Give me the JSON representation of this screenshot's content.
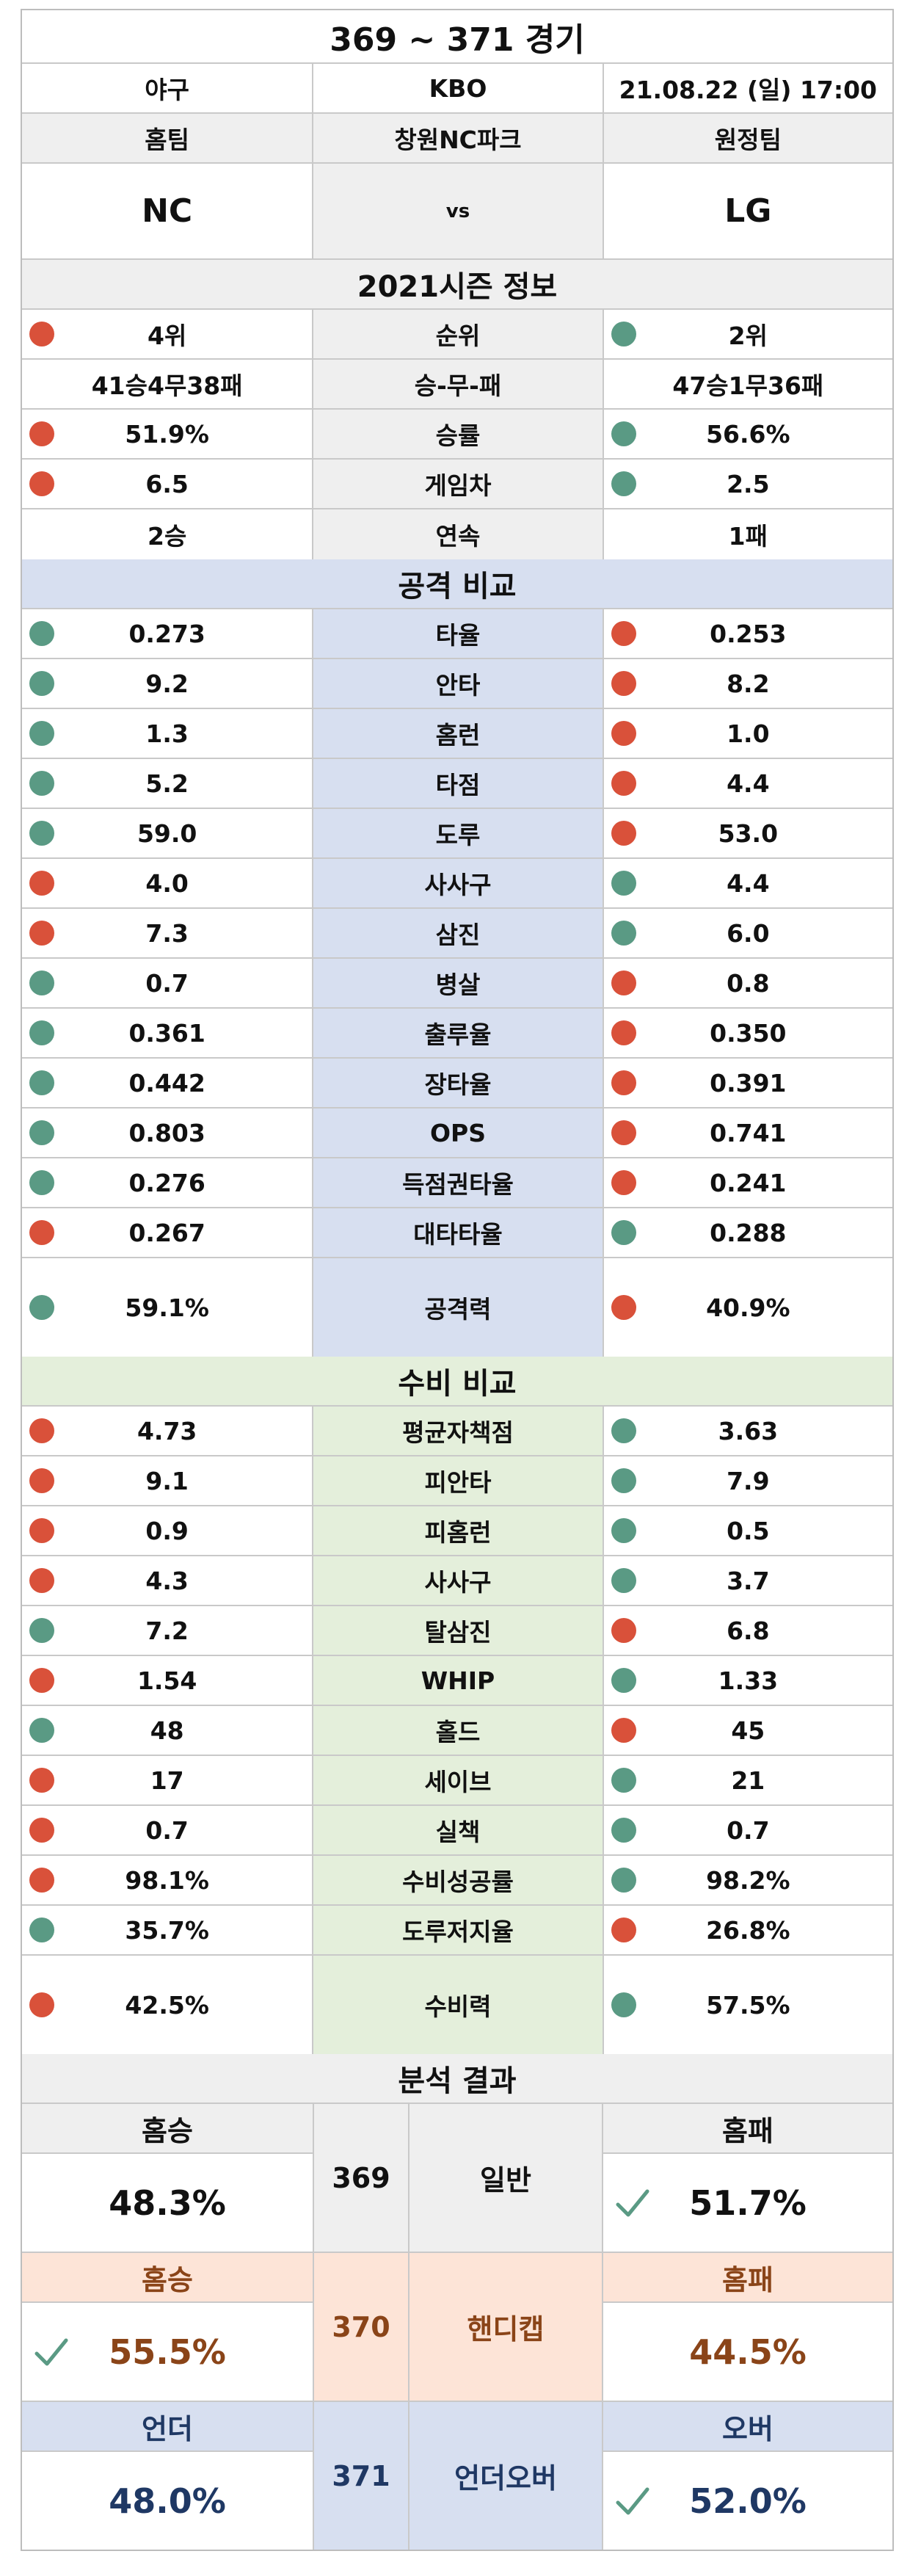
{
  "title": "369 ~ 371 경기",
  "info": {
    "sport": "야구",
    "league": "KBO",
    "datetime": "21.08.22 (일) 17:00"
  },
  "teams_header": {
    "home_label": "홈팀",
    "venue": "창원NC파크",
    "away_label": "원정팀"
  },
  "teams": {
    "home": "NC",
    "vs": "vs",
    "away": "LG"
  },
  "sections": {
    "season": "2021시즌 정보",
    "attack": "공격 비교",
    "defense": "수비 비교",
    "result": "분석 결과"
  },
  "colors": {
    "red_dot": "#d9513a",
    "green_dot": "#5a9a84",
    "check": "#5a9a84"
  },
  "season_rows": [
    {
      "label": "순위",
      "home": "4위",
      "away": "2위",
      "home_dot": "red",
      "away_dot": "green"
    },
    {
      "label": "승-무-패",
      "home": "41승4무38패",
      "away": "47승1무36패",
      "home_dot": "",
      "away_dot": ""
    },
    {
      "label": "승률",
      "home": "51.9%",
      "away": "56.6%",
      "home_dot": "red",
      "away_dot": "green"
    },
    {
      "label": "게임차",
      "home": "6.5",
      "away": "2.5",
      "home_dot": "red",
      "away_dot": "green"
    },
    {
      "label": "연속",
      "home": "2승",
      "away": "1패",
      "home_dot": "",
      "away_dot": ""
    }
  ],
  "attack_rows": [
    {
      "label": "타율",
      "home": "0.273",
      "away": "0.253",
      "home_dot": "green",
      "away_dot": "red"
    },
    {
      "label": "안타",
      "home": "9.2",
      "away": "8.2",
      "home_dot": "green",
      "away_dot": "red"
    },
    {
      "label": "홈런",
      "home": "1.3",
      "away": "1.0",
      "home_dot": "green",
      "away_dot": "red"
    },
    {
      "label": "타점",
      "home": "5.2",
      "away": "4.4",
      "home_dot": "green",
      "away_dot": "red"
    },
    {
      "label": "도루",
      "home": "59.0",
      "away": "53.0",
      "home_dot": "green",
      "away_dot": "red"
    },
    {
      "label": "사사구",
      "home": "4.0",
      "away": "4.4",
      "home_dot": "red",
      "away_dot": "green"
    },
    {
      "label": "삼진",
      "home": "7.3",
      "away": "6.0",
      "home_dot": "red",
      "away_dot": "green"
    },
    {
      "label": "병살",
      "home": "0.7",
      "away": "0.8",
      "home_dot": "green",
      "away_dot": "red"
    },
    {
      "label": "출루율",
      "home": "0.361",
      "away": "0.350",
      "home_dot": "green",
      "away_dot": "red"
    },
    {
      "label": "장타율",
      "home": "0.442",
      "away": "0.391",
      "home_dot": "green",
      "away_dot": "red"
    },
    {
      "label": "OPS",
      "home": "0.803",
      "away": "0.741",
      "home_dot": "green",
      "away_dot": "red"
    },
    {
      "label": "득점권타율",
      "home": "0.276",
      "away": "0.241",
      "home_dot": "green",
      "away_dot": "red"
    },
    {
      "label": "대타타율",
      "home": "0.267",
      "away": "0.288",
      "home_dot": "red",
      "away_dot": "green"
    },
    {
      "label": "공격력",
      "home": "59.1%",
      "away": "40.9%",
      "home_dot": "green",
      "away_dot": "red",
      "tall": true
    }
  ],
  "defense_rows": [
    {
      "label": "평균자책점",
      "home": "4.73",
      "away": "3.63",
      "home_dot": "red",
      "away_dot": "green"
    },
    {
      "label": "피안타",
      "home": "9.1",
      "away": "7.9",
      "home_dot": "red",
      "away_dot": "green"
    },
    {
      "label": "피홈런",
      "home": "0.9",
      "away": "0.5",
      "home_dot": "red",
      "away_dot": "green"
    },
    {
      "label": "사사구",
      "home": "4.3",
      "away": "3.7",
      "home_dot": "red",
      "away_dot": "green"
    },
    {
      "label": "탈삼진",
      "home": "7.2",
      "away": "6.8",
      "home_dot": "green",
      "away_dot": "red"
    },
    {
      "label": "WHIP",
      "home": "1.54",
      "away": "1.33",
      "home_dot": "red",
      "away_dot": "green"
    },
    {
      "label": "홀드",
      "home": "48",
      "away": "45",
      "home_dot": "green",
      "away_dot": "red"
    },
    {
      "label": "세이브",
      "home": "17",
      "away": "21",
      "home_dot": "red",
      "away_dot": "green"
    },
    {
      "label": "실책",
      "home": "0.7",
      "away": "0.7",
      "home_dot": "red",
      "away_dot": "green"
    },
    {
      "label": "수비성공률",
      "home": "98.1%",
      "away": "98.2%",
      "home_dot": "red",
      "away_dot": "green"
    },
    {
      "label": "도루저지율",
      "home": "35.7%",
      "away": "26.8%",
      "home_dot": "green",
      "away_dot": "red"
    },
    {
      "label": "수비력",
      "home": "42.5%",
      "away": "57.5%",
      "home_dot": "red",
      "away_dot": "green",
      "tall": true
    }
  ],
  "results": [
    {
      "key": "r1",
      "left_head": "홈승",
      "left_pct": "48.3%",
      "num": "369",
      "label": "일반",
      "right_head": "홈패",
      "right_pct": "51.7%",
      "check": "right"
    },
    {
      "key": "r2",
      "left_head": "홈승",
      "left_pct": "55.5%",
      "num": "370",
      "label": "핸디캡",
      "right_head": "홈패",
      "right_pct": "44.5%",
      "check": "left"
    },
    {
      "key": "r3",
      "left_head": "언더",
      "left_pct": "48.0%",
      "num": "371",
      "label": "언더오버",
      "right_head": "오버",
      "right_pct": "52.0%",
      "check": "right"
    }
  ]
}
